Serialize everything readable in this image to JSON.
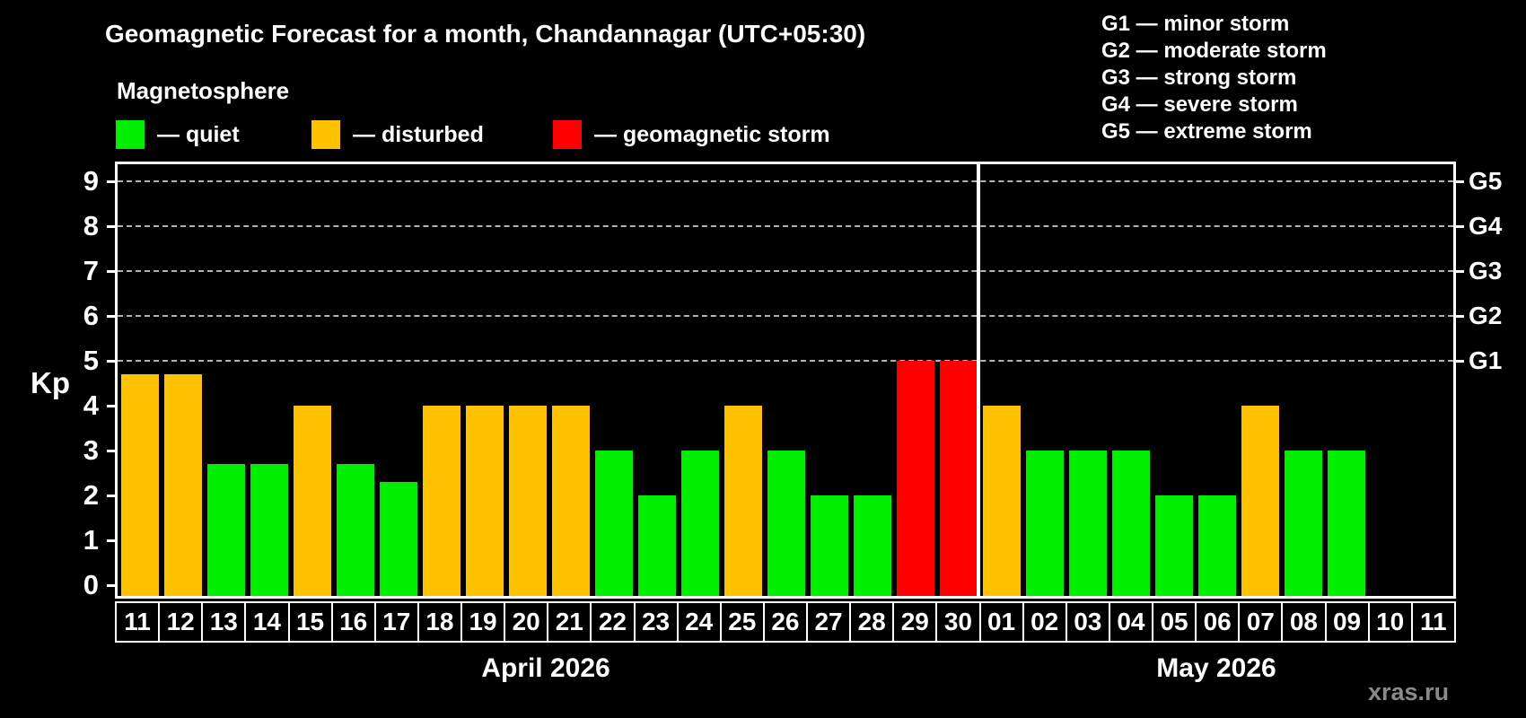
{
  "header": {
    "title": "Geomagnetic Forecast for a month, Chandannagar (UTC+05:30)",
    "subtitle": "Magnetosphere"
  },
  "legend": {
    "items": [
      {
        "key": "quiet",
        "label": "— quiet",
        "color": "#00ee00"
      },
      {
        "key": "disturbed",
        "label": "— disturbed",
        "color": "#ffc200"
      },
      {
        "key": "storm",
        "label": "— geomagnetic storm",
        "color": "#ff0000"
      }
    ]
  },
  "g_scale_legend": {
    "lines": [
      "G1 — minor storm",
      "G2 — moderate storm",
      "G3 — strong storm",
      "G4 — severe storm",
      "G5 — extreme storm"
    ]
  },
  "watermark": "xras.ru",
  "chart_data": {
    "type": "bar",
    "title": "Geomagnetic Forecast for a month, Chandannagar (UTC+05:30)",
    "ylabel": "Kp",
    "ylim": [
      0,
      9.4
    ],
    "yticks": [
      0,
      1,
      2,
      3,
      4,
      5,
      6,
      7,
      8,
      9
    ],
    "gridlines": {
      "style": "dashed",
      "at": [
        5,
        6,
        7,
        8,
        9
      ]
    },
    "g_levels": [
      {
        "kp": 5,
        "label": "G1"
      },
      {
        "kp": 6,
        "label": "G2"
      },
      {
        "kp": 7,
        "label": "G3"
      },
      {
        "kp": 8,
        "label": "G4"
      },
      {
        "kp": 9,
        "label": "G5"
      }
    ],
    "colors": {
      "quiet": "#00ee00",
      "disturbed": "#ffc200",
      "storm": "#ff0000"
    },
    "groups": [
      {
        "label": "April 2026",
        "days": [
          {
            "day": "11",
            "kp": 4.7,
            "status": "disturbed"
          },
          {
            "day": "12",
            "kp": 4.7,
            "status": "disturbed"
          },
          {
            "day": "13",
            "kp": 2.7,
            "status": "quiet"
          },
          {
            "day": "14",
            "kp": 2.7,
            "status": "quiet"
          },
          {
            "day": "15",
            "kp": 4.0,
            "status": "disturbed"
          },
          {
            "day": "16",
            "kp": 2.7,
            "status": "quiet"
          },
          {
            "day": "17",
            "kp": 2.3,
            "status": "quiet"
          },
          {
            "day": "18",
            "kp": 4.0,
            "status": "disturbed"
          },
          {
            "day": "19",
            "kp": 4.0,
            "status": "disturbed"
          },
          {
            "day": "20",
            "kp": 4.0,
            "status": "disturbed"
          },
          {
            "day": "21",
            "kp": 4.0,
            "status": "disturbed"
          },
          {
            "day": "22",
            "kp": 3.0,
            "status": "quiet"
          },
          {
            "day": "23",
            "kp": 2.0,
            "status": "quiet"
          },
          {
            "day": "24",
            "kp": 3.0,
            "status": "quiet"
          },
          {
            "day": "25",
            "kp": 4.0,
            "status": "disturbed"
          },
          {
            "day": "26",
            "kp": 3.0,
            "status": "quiet"
          },
          {
            "day": "27",
            "kp": 2.0,
            "status": "quiet"
          },
          {
            "day": "28",
            "kp": 2.0,
            "status": "quiet"
          },
          {
            "day": "29",
            "kp": 5.0,
            "status": "storm"
          },
          {
            "day": "30",
            "kp": 5.0,
            "status": "storm"
          }
        ]
      },
      {
        "label": "May 2026",
        "days": [
          {
            "day": "01",
            "kp": 4.0,
            "status": "disturbed"
          },
          {
            "day": "02",
            "kp": 3.0,
            "status": "quiet"
          },
          {
            "day": "03",
            "kp": 3.0,
            "status": "quiet"
          },
          {
            "day": "04",
            "kp": 3.0,
            "status": "quiet"
          },
          {
            "day": "05",
            "kp": 2.0,
            "status": "quiet"
          },
          {
            "day": "06",
            "kp": 2.0,
            "status": "quiet"
          },
          {
            "day": "07",
            "kp": 4.0,
            "status": "disturbed"
          },
          {
            "day": "08",
            "kp": 3.0,
            "status": "quiet"
          },
          {
            "day": "09",
            "kp": 3.0,
            "status": "quiet"
          },
          {
            "day": "10",
            "kp": null,
            "status": "none"
          },
          {
            "day": "11",
            "kp": null,
            "status": "none"
          }
        ]
      }
    ]
  }
}
